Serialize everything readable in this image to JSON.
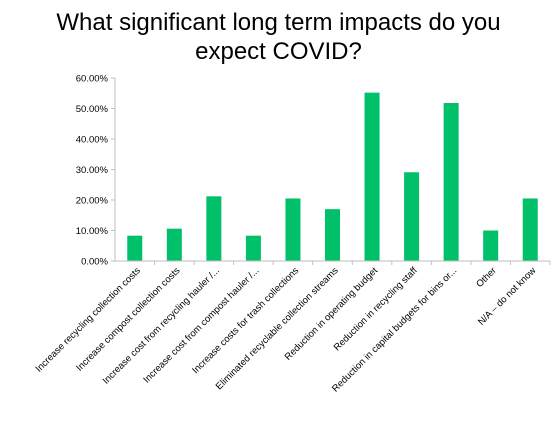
{
  "chart_data": {
    "type": "bar",
    "title_line1": "What significant long term impacts do you",
    "title_line2": "expect COVID?",
    "categories": [
      "Increase recycling collection costs",
      "Increase compost collection costs",
      "Increase cost from recycling hauler /...",
      "Increase cost from compost hauler /...",
      "Increase costs for trash collections",
      "Eliminated recyclable collection streams",
      "Reduction in operating budget",
      "Reduction in recycling staff",
      "Reduction in capital budgets for bins or...",
      "Other",
      "N/A – do not know"
    ],
    "values": [
      8.3,
      10.6,
      21.2,
      8.3,
      20.5,
      17.0,
      55.2,
      29.1,
      51.8,
      10.0,
      20.5
    ],
    "ylim": [
      0,
      60
    ],
    "yticks": [
      "0.00%",
      "10.00%",
      "20.00%",
      "30.00%",
      "40.00%",
      "50.00%",
      "60.00%"
    ],
    "bar_color": "#00c06a",
    "grid": false,
    "xlabel": "",
    "ylabel": ""
  }
}
